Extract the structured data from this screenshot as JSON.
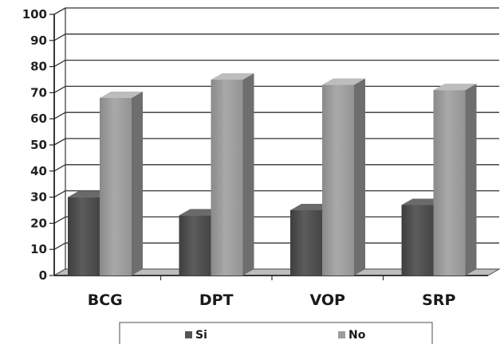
{
  "chart_data": {
    "type": "bar",
    "categories": [
      "BCG",
      "DPT",
      "VOP",
      "SRP"
    ],
    "series": [
      {
        "name": "Si",
        "values": [
          30,
          23,
          25,
          27
        ],
        "color": "#555555"
      },
      {
        "name": "No",
        "values": [
          68,
          75,
          73,
          71
        ],
        "color": "#9c9c9c"
      }
    ],
    "yticks": [
      "0",
      "10",
      "20",
      "30",
      "40",
      "50",
      "60",
      "70",
      "80",
      "90",
      "100"
    ],
    "ylim": [
      0,
      100
    ],
    "grid": true,
    "three_d": true,
    "legend": "bottom"
  }
}
